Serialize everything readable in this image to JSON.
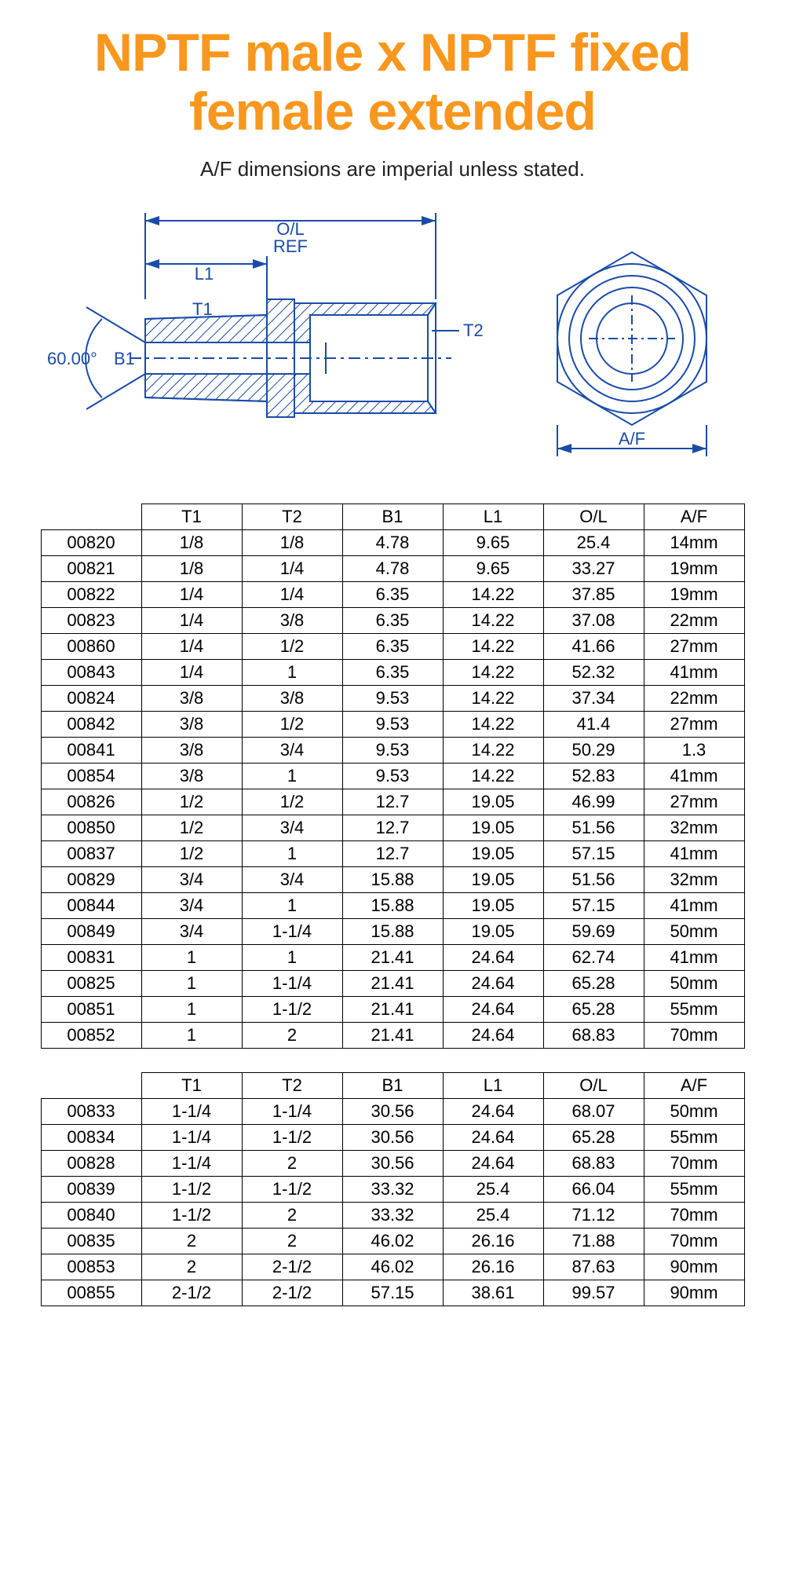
{
  "title": "NPTF male x NPTF fixed female extended",
  "subtitle": "A/F dimensions are imperial unless stated.",
  "diagram": {
    "labels": {
      "ol_ref": "O/L\nREF",
      "l1": "L1",
      "t1": "T1",
      "t2": "T2",
      "b1": "B1",
      "angle": "60.00°",
      "af": "A/F"
    },
    "stroke_color": "#1a4ba8",
    "hatch_color": "#1a4ba8",
    "text_color": "#1a4ba8"
  },
  "table1": {
    "columns": [
      "",
      "T1",
      "T2",
      "B1",
      "L1",
      "O/L",
      "A/F"
    ],
    "rows": [
      [
        "00820",
        "1/8",
        "1/8",
        "4.78",
        "9.65",
        "25.4",
        "14mm"
      ],
      [
        "00821",
        "1/8",
        "1/4",
        "4.78",
        "9.65",
        "33.27",
        "19mm"
      ],
      [
        "00822",
        "1/4",
        "1/4",
        "6.35",
        "14.22",
        "37.85",
        "19mm"
      ],
      [
        "00823",
        "1/4",
        "3/8",
        "6.35",
        "14.22",
        "37.08",
        "22mm"
      ],
      [
        "00860",
        "1/4",
        "1/2",
        "6.35",
        "14.22",
        "41.66",
        "27mm"
      ],
      [
        "00843",
        "1/4",
        "1",
        "6.35",
        "14.22",
        "52.32",
        "41mm"
      ],
      [
        "00824",
        "3/8",
        "3/8",
        "9.53",
        "14.22",
        "37.34",
        "22mm"
      ],
      [
        "00842",
        "3/8",
        "1/2",
        "9.53",
        "14.22",
        "41.4",
        "27mm"
      ],
      [
        "00841",
        "3/8",
        "3/4",
        "9.53",
        "14.22",
        "50.29",
        "1.3"
      ],
      [
        "00854",
        "3/8",
        "1",
        "9.53",
        "14.22",
        "52.83",
        "41mm"
      ],
      [
        "00826",
        "1/2",
        "1/2",
        "12.7",
        "19.05",
        "46.99",
        "27mm"
      ],
      [
        "00850",
        "1/2",
        "3/4",
        "12.7",
        "19.05",
        "51.56",
        "32mm"
      ],
      [
        "00837",
        "1/2",
        "1",
        "12.7",
        "19.05",
        "57.15",
        "41mm"
      ],
      [
        "00829",
        "3/4",
        "3/4",
        "15.88",
        "19.05",
        "51.56",
        "32mm"
      ],
      [
        "00844",
        "3/4",
        "1",
        "15.88",
        "19.05",
        "57.15",
        "41mm"
      ],
      [
        "00849",
        "3/4",
        "1-1/4",
        "15.88",
        "19.05",
        "59.69",
        "50mm"
      ],
      [
        "00831",
        "1",
        "1",
        "21.41",
        "24.64",
        "62.74",
        "41mm"
      ],
      [
        "00825",
        "1",
        "1-1/4",
        "21.41",
        "24.64",
        "65.28",
        "50mm"
      ],
      [
        "00851",
        "1",
        "1-1/2",
        "21.41",
        "24.64",
        "65.28",
        "55mm"
      ],
      [
        "00852",
        "1",
        "2",
        "21.41",
        "24.64",
        "68.83",
        "70mm"
      ]
    ]
  },
  "table2": {
    "columns": [
      "",
      "T1",
      "T2",
      "B1",
      "L1",
      "O/L",
      "A/F"
    ],
    "rows": [
      [
        "00833",
        "1-1/4",
        "1-1/4",
        "30.56",
        "24.64",
        "68.07",
        "50mm"
      ],
      [
        "00834",
        "1-1/4",
        "1-1/2",
        "30.56",
        "24.64",
        "65.28",
        "55mm"
      ],
      [
        "00828",
        "1-1/4",
        "2",
        "30.56",
        "24.64",
        "68.83",
        "70mm"
      ],
      [
        "00839",
        "1-1/2",
        "1-1/2",
        "33.32",
        "25.4",
        "66.04",
        "55mm"
      ],
      [
        "00840",
        "1-1/2",
        "2",
        "33.32",
        "25.4",
        "71.12",
        "70mm"
      ],
      [
        "00835",
        "2",
        "2",
        "46.02",
        "26.16",
        "71.88",
        "70mm"
      ],
      [
        "00853",
        "2",
        "2-1/2",
        "46.02",
        "26.16",
        "87.63",
        "90mm"
      ],
      [
        "00855",
        "2-1/2",
        "2-1/2",
        "57.15",
        "38.61",
        "99.57",
        "90mm"
      ]
    ]
  }
}
